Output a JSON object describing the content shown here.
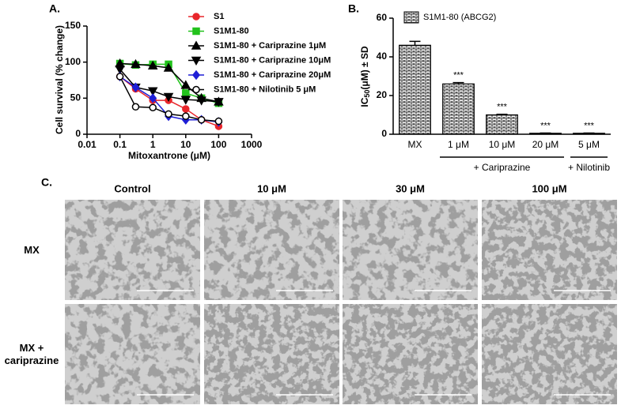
{
  "panels": [
    "A.",
    "B.",
    "C."
  ],
  "chart_data": [
    {
      "type": "line",
      "xlabel": "Mitoxantrone (μM)",
      "ylabel": "Cell survival (% change)",
      "log_x": true,
      "xlim": [
        0.01,
        1000
      ],
      "xticks": [
        0.01,
        0.1,
        1,
        10,
        100,
        1000
      ],
      "ylim": [
        0,
        150
      ],
      "yticks": [
        0,
        50,
        100,
        150
      ],
      "x": [
        0.1,
        0.3,
        1,
        3,
        10,
        30,
        100
      ],
      "series": [
        {
          "name": "S1",
          "color": "#e8262b",
          "marker": "circle",
          "values": [
            80,
            63,
            47,
            47,
            35,
            20,
            11
          ]
        },
        {
          "name": "S1M1-80",
          "color": "#22c21c",
          "marker": "square",
          "values": [
            98,
            96,
            97,
            97,
            57,
            50,
            43
          ]
        },
        {
          "name": "S1M1-80 + Cariprazine 1μM",
          "color": "#000000",
          "marker": "triangle-up",
          "values": [
            98,
            97,
            95,
            92,
            68,
            50,
            45
          ]
        },
        {
          "name": "S1M1-80 + Cariprazine 10μM",
          "color": "#000000",
          "marker": "triangle-down",
          "values": [
            90,
            65,
            60,
            52,
            48,
            47,
            45
          ]
        },
        {
          "name": "S1M1-80 + Cariprazine 20μM",
          "color": "#1f1fd6",
          "marker": "diamond",
          "values": [
            80,
            65,
            50,
            25,
            20,
            20,
            17
          ]
        },
        {
          "name": "S1M1-80 + Nilotinib 5 μM",
          "color": "#000000",
          "marker": "open-circle",
          "values": [
            80,
            38,
            37,
            28,
            25,
            20,
            18
          ]
        }
      ]
    },
    {
      "type": "bar",
      "ylabel": [
        "IC",
        "50",
        "(μM) ± SD"
      ],
      "legend": "S1M1-80 (ABCG2)",
      "color": "#000000",
      "categories": [
        "MX",
        "1 μM",
        "10 μM",
        "20 μM",
        "5 μM"
      ],
      "values": [
        46,
        26,
        10,
        0.5,
        0.5
      ],
      "errors": [
        2,
        0.7,
        0.3,
        0.1,
        0.1
      ],
      "value_labels": [
        null,
        "***",
        "***",
        "***",
        "***"
      ],
      "groups": [
        {
          "label": "+ Cariprazine",
          "from": 1,
          "to": 3
        },
        {
          "label": "+ Nilotinib",
          "from": 4,
          "to": 4
        }
      ],
      "ylim": [
        0,
        60
      ],
      "yticks": [
        0,
        20,
        40,
        60
      ]
    }
  ],
  "images": {
    "columns": [
      "Control",
      "10 μM",
      "30 μM",
      "100 μM"
    ],
    "rows": [
      "MX",
      "MX + cariprazine"
    ]
  }
}
